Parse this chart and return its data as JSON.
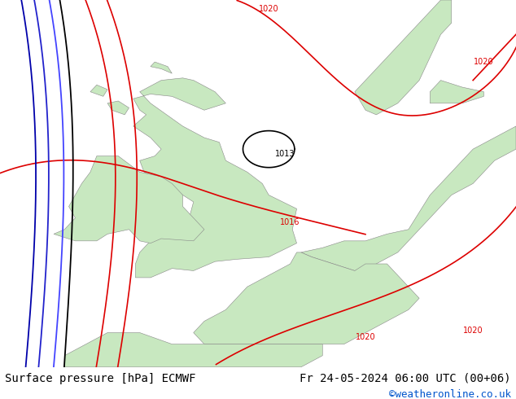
{
  "title_left": "Surface pressure [hPa] ECMWF",
  "title_right": "Fr 24-05-2024 06:00 UTC (00+06)",
  "credit": "©weatheronline.co.uk",
  "background_map": "#e8e8e8",
  "land_color": "#c8e8c0",
  "sea_color": "#e8e8e8",
  "isobar_color_red": "#dd0000",
  "isobar_color_black": "#000000",
  "isobar_color_blue": "#0000cc",
  "text_color_bottom": "#000000",
  "credit_color": "#0055cc",
  "font_size_bottom": 10,
  "font_size_credit": 9,
  "fig_width": 6.34,
  "fig_height": 4.9,
  "dpi": 100
}
